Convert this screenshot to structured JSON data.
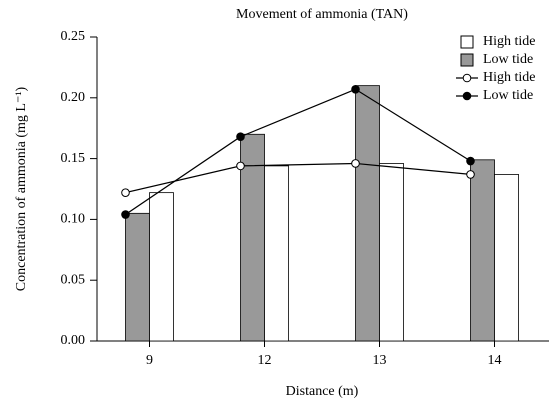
{
  "chart_data": {
    "type": "bar",
    "title": "Movement of ammonia (TAN)",
    "x_label": "Distance (m)",
    "y_label": "Concentration of ammonia (mg L⁻¹)",
    "categories": [
      "9",
      "12",
      "13",
      "14"
    ],
    "series": [
      {
        "name": "High tide",
        "type": "bar",
        "color": "#ffffff",
        "values": [
          0.122,
          0.144,
          0.146,
          0.137
        ]
      },
      {
        "name": "Low tide",
        "type": "bar",
        "color": "#999999",
        "values": [
          0.105,
          0.17,
          0.21,
          0.149
        ]
      },
      {
        "name": "High tide",
        "type": "line",
        "color": "#ffffff",
        "values": [
          0.122,
          0.144,
          0.146,
          0.137
        ]
      },
      {
        "name": "Low tide",
        "type": "line",
        "color": "#000000",
        "values": [
          0.104,
          0.168,
          0.207,
          0.148
        ]
      }
    ],
    "ylim": [
      0,
      0.25
    ],
    "yticks": [
      {
        "value": 0,
        "label": "0.00"
      },
      0.05,
      {
        "value": 0.1,
        "label": "0.10"
      },
      0.15,
      {
        "value": 0.2,
        "label": "0.20"
      },
      0.25
    ],
    "legend": "top-right"
  }
}
